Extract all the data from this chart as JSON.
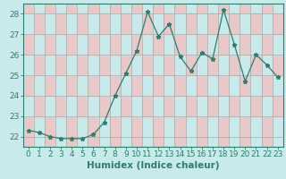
{
  "x": [
    0,
    1,
    2,
    3,
    4,
    5,
    6,
    7,
    8,
    9,
    10,
    11,
    12,
    13,
    14,
    15,
    16,
    17,
    18,
    19,
    20,
    21,
    22,
    23
  ],
  "y": [
    22.3,
    22.2,
    22.0,
    21.9,
    21.9,
    21.9,
    22.1,
    22.7,
    24.0,
    25.1,
    26.2,
    28.1,
    26.9,
    27.5,
    25.9,
    25.2,
    26.1,
    25.8,
    28.2,
    26.5,
    24.7,
    26.0,
    25.5,
    24.9
  ],
  "line_color": "#2e7d6e",
  "marker": "*",
  "bg_color": "#c8eaea",
  "grid_major_color": "#aaaaaa",
  "grid_minor_color": "#f0c8c8",
  "title": "",
  "xlabel": "Humidex (Indice chaleur)",
  "ylabel": "",
  "ylim": [
    21.5,
    28.5
  ],
  "xlim": [
    -0.5,
    23.5
  ],
  "yticks": [
    22,
    23,
    24,
    25,
    26,
    27,
    28
  ],
  "xticks": [
    0,
    1,
    2,
    3,
    4,
    5,
    6,
    7,
    8,
    9,
    10,
    11,
    12,
    13,
    14,
    15,
    16,
    17,
    18,
    19,
    20,
    21,
    22,
    23
  ],
  "tick_color": "#2e7d6e",
  "label_fontsize": 6.5,
  "axis_color": "#2e7d6e",
  "xlabel_fontsize": 7.5,
  "cell_colors": [
    "#e8c8c8",
    "#c8eaea"
  ]
}
